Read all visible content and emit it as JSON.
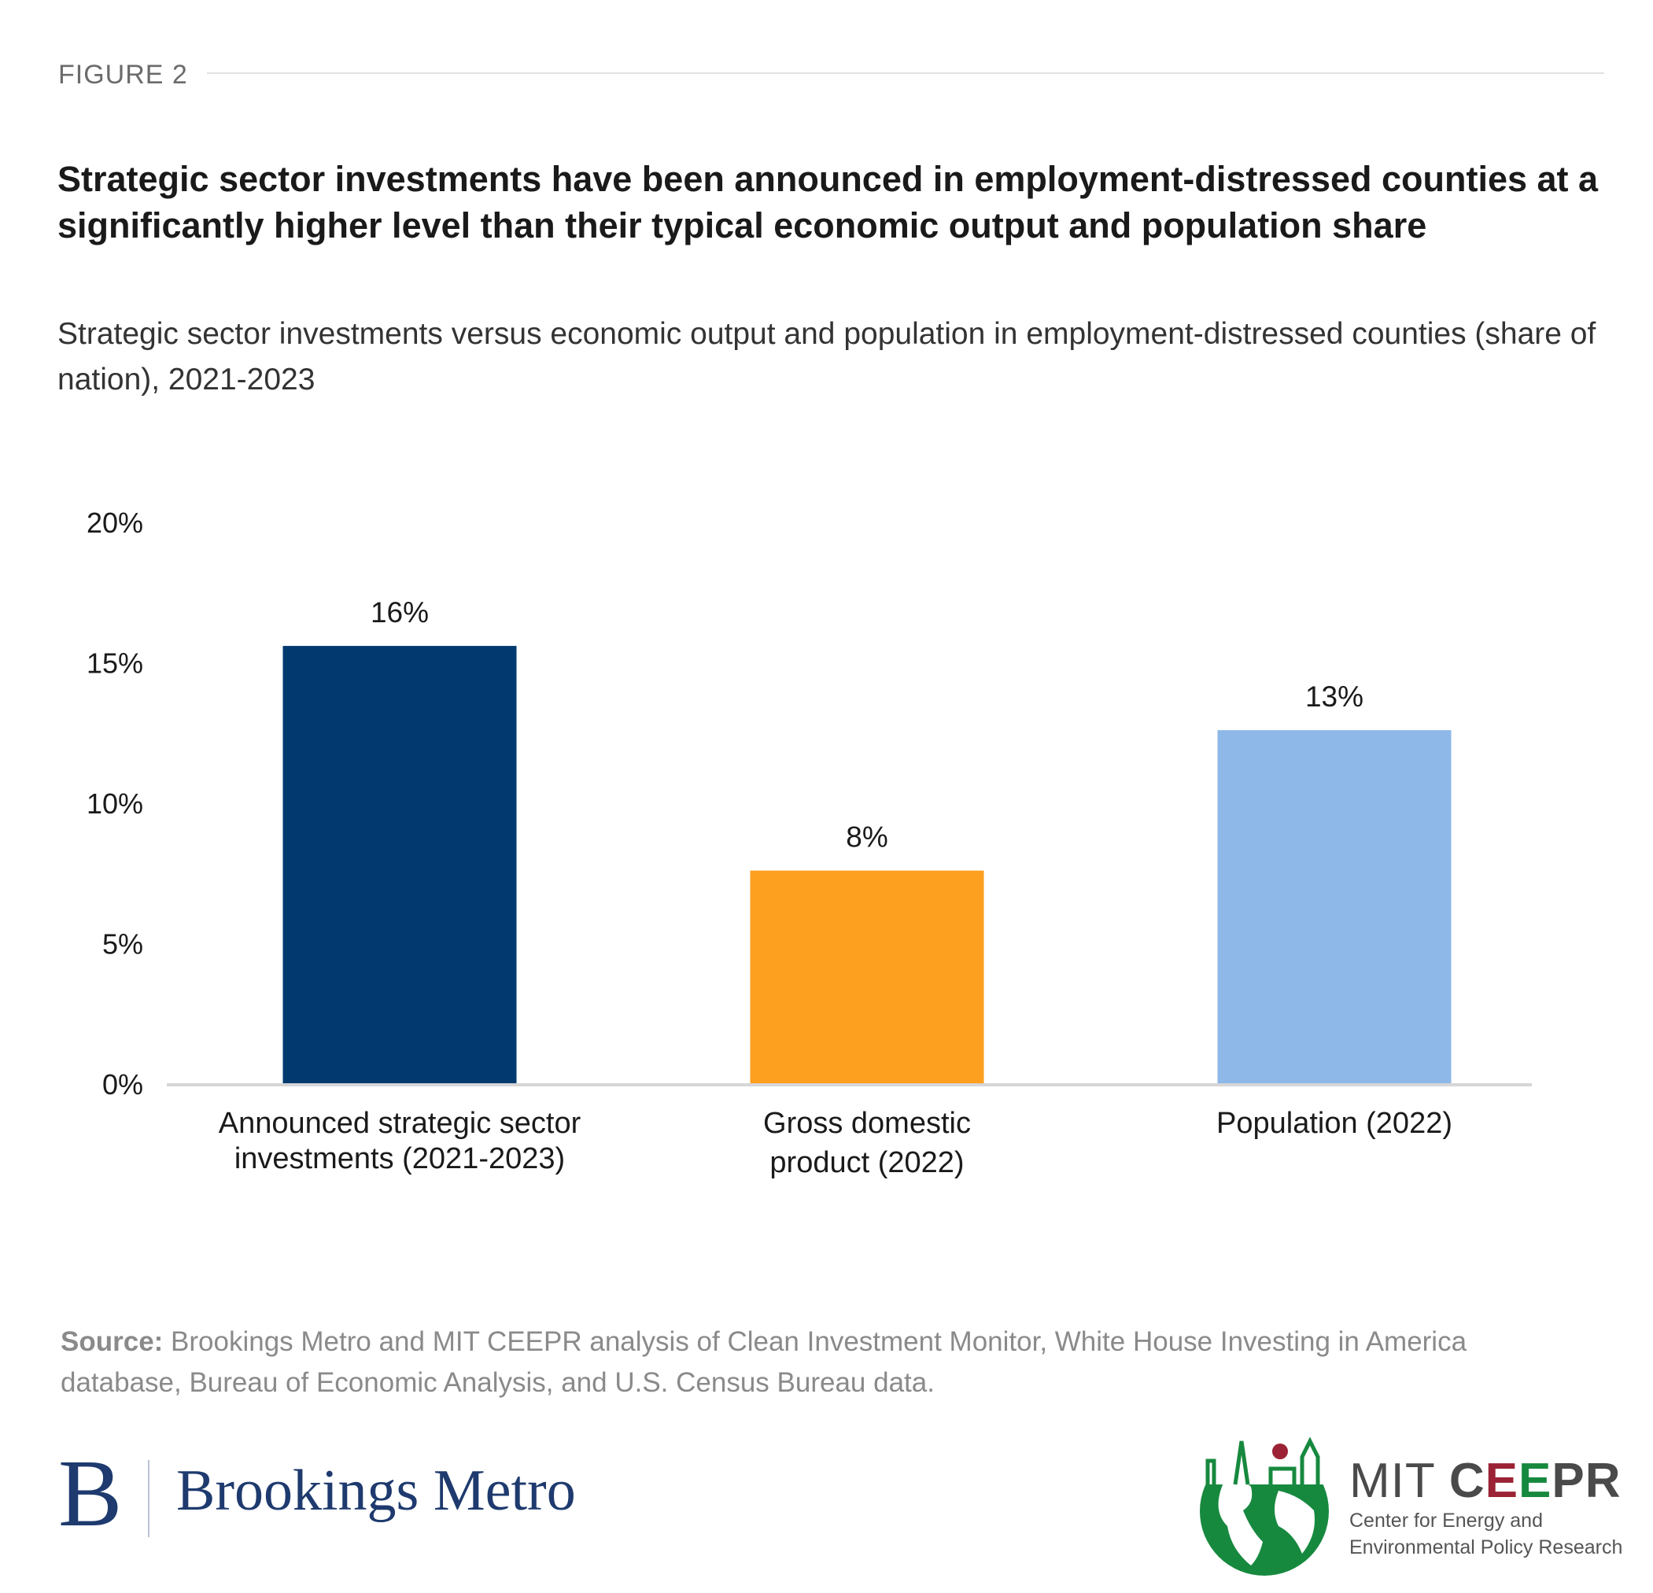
{
  "header": {
    "figure_label": "FIGURE 2",
    "title": "Strategic sector investments have been announced in employment-distressed counties at a significantly higher level than their typical economic output and population share",
    "subtitle": "Strategic sector investments versus economic output and population in employment-distressed counties (share of nation), 2021-2023"
  },
  "chart_data": {
    "type": "bar",
    "categories": [
      "Announced strategic sector investments (2021-2023)",
      "Gross domestic product (2022)",
      "Population (2022)"
    ],
    "category_lines": [
      [
        "Announced strategic sector",
        "investments (2021-2023)"
      ],
      [
        "Gross domestic",
        "product (2022)"
      ],
      [
        "Population (2022)"
      ]
    ],
    "values": [
      15.6,
      7.6,
      12.6
    ],
    "data_labels": [
      "16%",
      "8%",
      "13%"
    ],
    "colors": [
      "#023a70",
      "#fd9f1f",
      "#8db8e8"
    ],
    "yticks": [
      "0%",
      "5%",
      "10%",
      "15%",
      "20%"
    ],
    "ytick_values": [
      0,
      5,
      10,
      15,
      20
    ],
    "ylim": [
      0,
      20
    ],
    "grid": false,
    "title": "",
    "xlabel": "",
    "ylabel": ""
  },
  "footer": {
    "source_label": "Source:",
    "source_text": " Brookings Metro and MIT CEEPR analysis of Clean Investment Monitor, White House Investing in America database, Bureau of Economic Analysis, and U.S. Census Bureau data."
  },
  "logos": {
    "brookings_mark": "B",
    "brookings_name": "Brookings Metro",
    "mit_prefix": "MIT ",
    "mit_c": "C",
    "mit_e1": "E",
    "mit_e2": "E",
    "mit_pr": "PR",
    "mit_sub1": "Center for Energy and",
    "mit_sub2": "Environmental Policy Research"
  }
}
